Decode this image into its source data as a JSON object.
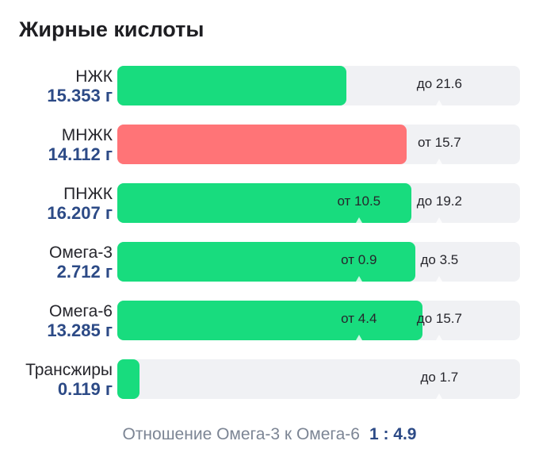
{
  "title": "Жирные кислоты",
  "from_word": "от",
  "to_word": "до",
  "items": [
    {
      "label": "НЖК",
      "value": 15.353,
      "unit": "г",
      "max": 21.6,
      "color": "#18dc7e"
    },
    {
      "label": "МНЖК",
      "value": 14.112,
      "unit": "г",
      "min": 15.7,
      "color": "#ff7477"
    },
    {
      "label": "ПНЖК",
      "value": 16.207,
      "unit": "г",
      "min": 10.5,
      "max": 19.2,
      "color": "#18dc7e"
    },
    {
      "label": "Омега-3",
      "value": 2.712,
      "unit": "г",
      "min": 0.9,
      "max": 3.5,
      "color": "#18dc7e"
    },
    {
      "label": "Омега-6",
      "value": 13.285,
      "unit": "г",
      "min": 4.4,
      "max": 15.7,
      "color": "#18dc7e"
    },
    {
      "label": "Трансжиры",
      "value": 0.119,
      "unit": "г",
      "max": 1.7,
      "color": "#18dc7e"
    }
  ],
  "ratio": {
    "label": "Отношение Омега-3 к Омега-6",
    "value": "1 : 4.9"
  }
}
